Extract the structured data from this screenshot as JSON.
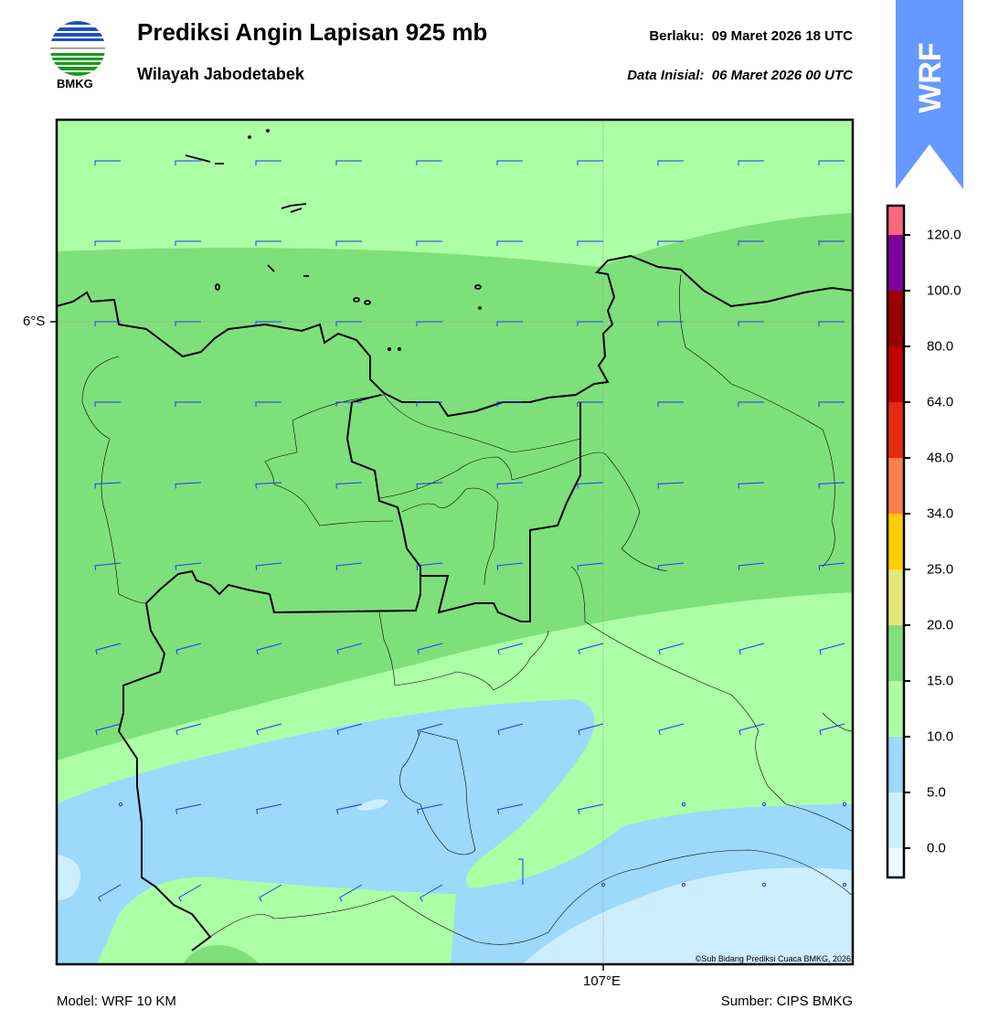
{
  "header": {
    "title": "Prediksi Angin Lapisan 925 mb",
    "subtitle": "Wilayah Jabodetabek",
    "valid": "Berlaku:  09 Maret 2026 18 UTC",
    "initial": "Data Inisial:  06 Maret 2026 00 UTC",
    "logo_text": "BMKG",
    "ribbon_text": "WRF"
  },
  "map": {
    "lat_label": "6°S",
    "lon_label": "107°E",
    "copyright": "©Sub Bidang Prediksi Cuaca BMKG, 2026"
  },
  "colorbar": {
    "labels": [
      "120.0",
      "100.0",
      "80.0",
      "64.0",
      "48.0",
      "34.0",
      "25.0",
      "20.0",
      "15.0",
      "10.0",
      "5.0",
      "0.0"
    ],
    "colors": [
      "#ff6680",
      "#7f00a0",
      "#990000",
      "#c00000",
      "#e62a12",
      "#ff7f4f",
      "#ffcc00",
      "#e6e678",
      "#7ee07a",
      "#acffa4",
      "#9cd9fa",
      "#cceeff",
      "#f0f6fd"
    ]
  },
  "footer": {
    "model": "Model: WRF 10 KM",
    "source": "Sumber: CIPS BMKG"
  }
}
